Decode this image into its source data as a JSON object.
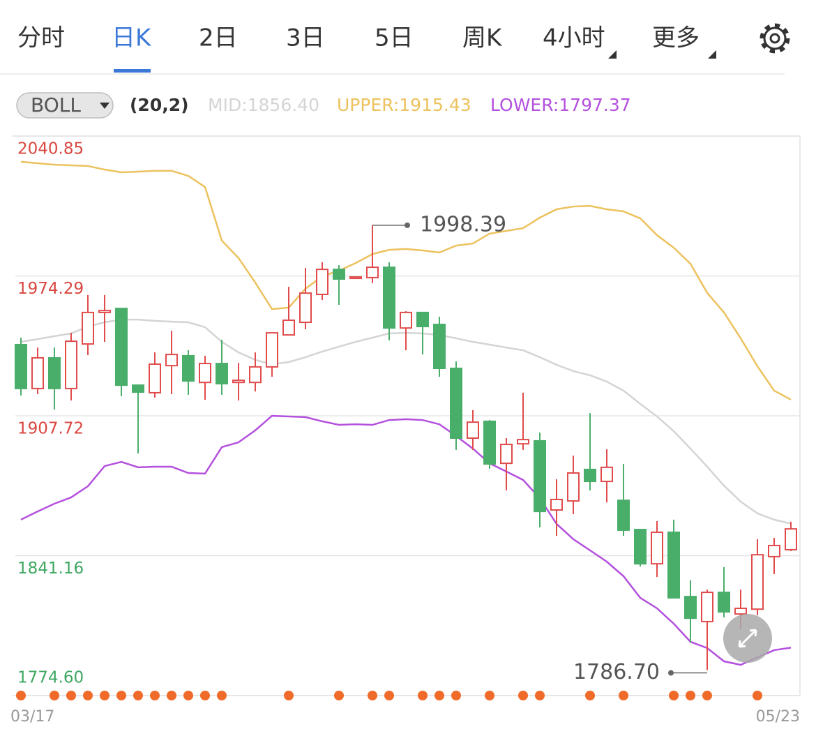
{
  "tabs": [
    "分时",
    "日K",
    "2日",
    "3日",
    "5日",
    "周K",
    "4小时",
    "更多"
  ],
  "indicator": {
    "name": "BOLL",
    "params": "(20,2)"
  },
  "chart_data": {
    "type": "candlestick",
    "categories": [
      "03/17",
      null,
      null,
      null,
      null,
      null,
      null,
      null,
      null,
      null,
      null,
      null,
      null,
      null,
      null,
      null,
      null,
      null,
      null,
      null,
      null,
      null,
      null,
      null,
      null,
      null,
      null,
      null,
      null,
      null,
      null,
      null,
      null,
      null,
      null,
      null,
      null,
      null,
      null,
      null,
      null,
      null,
      null,
      null,
      null,
      null,
      "05/23"
    ],
    "open": [
      1941.6,
      1920.7,
      1935.3,
      1920.7,
      1941.9,
      1956.9,
      1958.8,
      1922.3,
      1918.7,
      1931.6,
      1936.3,
      1923.6,
      1932.6,
      1923.6,
      1923.6,
      1931.0,
      1946.2,
      1952.2,
      1965.5,
      1977.4,
      1973.1,
      1973.5,
      1978.4,
      1949.5,
      1956.9,
      1951.2,
      1930.3,
      1897.1,
      1905.1,
      1885.1,
      1894.4,
      1895.8,
      1862.9,
      1867.2,
      1882.2,
      1876.5,
      1867.5,
      1853.6,
      1837.3,
      1852.3,
      1821.7,
      1809.8,
      1823.7,
      1813.4,
      1815.7,
      1840.7,
      1844.0
    ],
    "high": [
      1944.9,
      1940.2,
      1940.2,
      1947.2,
      1965.2,
      1965.2,
      1958.8,
      1922.3,
      1937.9,
      1948.2,
      1938.9,
      1936.3,
      1943.9,
      1932.9,
      1937.9,
      1947.2,
      1969.1,
      1978.1,
      1980.8,
      1979.4,
      1974.1,
      1998.39,
      1980.8,
      1957.5,
      1956.9,
      1954.9,
      1933.6,
      1910.4,
      1905.7,
      1897.1,
      1918.7,
      1899.7,
      1877.5,
      1888.8,
      1909.0,
      1891.8,
      1884.8,
      1853.6,
      1857.6,
      1858.3,
      1829.4,
      1825.0,
      1835.7,
      1825.0,
      1849.0,
      1849.6,
      1857.3
    ],
    "low": [
      1917.4,
      1918.0,
      1910.7,
      1915.0,
      1936.6,
      1942.9,
      1917.0,
      1889.8,
      1916.4,
      1918.0,
      1917.7,
      1915.3,
      1917.7,
      1915.0,
      1919.3,
      1926.3,
      1946.2,
      1948.9,
      1962.8,
      1960.5,
      1972.8,
      1970.8,
      1943.6,
      1938.9,
      1936.9,
      1926.3,
      1891.5,
      1891.5,
      1882.5,
      1872.2,
      1891.5,
      1854.6,
      1850.6,
      1860.9,
      1872.2,
      1866.5,
      1850.6,
      1836.0,
      1831.0,
      1821.1,
      1799.8,
      1786.7,
      1811.8,
      1806.1,
      1812.8,
      1832.4,
      1843.3
    ],
    "close": [
      1920.7,
      1935.3,
      1920.7,
      1943.2,
      1956.9,
      1957.8,
      1922.3,
      1919.0,
      1932.3,
      1936.9,
      1924.3,
      1932.6,
      1923.0,
      1924.6,
      1931.0,
      1947.2,
      1953.2,
      1966.1,
      1977.4,
      1972.8,
      1973.8,
      1978.4,
      1949.5,
      1956.9,
      1950.2,
      1930.3,
      1897.1,
      1904.7,
      1884.8,
      1894.1,
      1896.4,
      1862.2,
      1867.9,
      1880.5,
      1876.5,
      1883.2,
      1853.3,
      1837.3,
      1852.3,
      1821.1,
      1811.4,
      1823.7,
      1814.4,
      1816.1,
      1841.6,
      1846.0,
      1853.9
    ],
    "high_label": "1998.39",
    "low_label": "1786.70",
    "up_color": "#e04c4c",
    "down_color": "#4aae6b",
    "series": [
      {
        "name": "MID:1856.40",
        "color": "#d4d4d4",
        "values": [
          1942.9,
          1944.2,
          1945.6,
          1946.9,
          1950.2,
          1952.2,
          1953.5,
          1953.5,
          1952.9,
          1952.5,
          1952.2,
          1949.9,
          1942.9,
          1937.9,
          1934.3,
          1932.3,
          1933.3,
          1935.6,
          1938.3,
          1940.6,
          1942.9,
          1944.9,
          1946.9,
          1947.2,
          1946.9,
          1946.2,
          1944.6,
          1942.9,
          1941.6,
          1940.2,
          1938.9,
          1935.6,
          1932.0,
          1929.0,
          1927.0,
          1924.0,
          1919.7,
          1913.4,
          1907.4,
          1900.4,
          1892.1,
          1883.5,
          1874.5,
          1866.9,
          1861.3,
          1858.3,
          1856.4
        ]
      },
      {
        "name": "UPPER:1915.43",
        "color": "#ecc25e",
        "values": [
          2028.6,
          2027.9,
          2027.2,
          2026.9,
          2026.6,
          2024.9,
          2023.6,
          2023.9,
          2024.3,
          2024.3,
          2021.9,
          2016.6,
          1991.1,
          1982.8,
          1971.1,
          1958.5,
          1959.2,
          1968.2,
          1974.1,
          1976.8,
          1980.4,
          1984.7,
          1986.7,
          1987.1,
          1986.4,
          1985.4,
          1988.7,
          1989.7,
          1994.4,
          1995.7,
          1997.0,
          2002.0,
          2006.0,
          2007.3,
          2007.6,
          2006.0,
          2005.0,
          2001.7,
          1993.7,
          1987.7,
          1980.1,
          1966.2,
          1956.9,
          1944.6,
          1931.3,
          1919.7,
          1915.43
        ]
      },
      {
        "name": "LOWER:1797.37",
        "color": "#b450de",
        "values": [
          1858.3,
          1862.2,
          1865.9,
          1868.9,
          1874.2,
          1883.8,
          1885.8,
          1883.2,
          1883.5,
          1883.5,
          1880.5,
          1880.2,
          1892.8,
          1895.1,
          1900.8,
          1907.7,
          1907.4,
          1907.1,
          1905.1,
          1903.4,
          1903.7,
          1903.4,
          1905.7,
          1906.1,
          1905.7,
          1903.7,
          1898.1,
          1892.1,
          1885.1,
          1881.2,
          1877.2,
          1868.5,
          1856.3,
          1849.0,
          1843.7,
          1838.3,
          1831.4,
          1821.1,
          1816.1,
          1808.8,
          1800.2,
          1797.2,
          1790.9,
          1789.2,
          1792.8,
          1796.2,
          1797.37
        ]
      }
    ],
    "ylim": [
      1774.6,
      2040.85
    ],
    "yticks": [
      {
        "value": 1774.6,
        "label": "1774.60"
      },
      1841.16,
      1907.72,
      1974.29,
      2040.85
    ],
    "grid": true
  }
}
